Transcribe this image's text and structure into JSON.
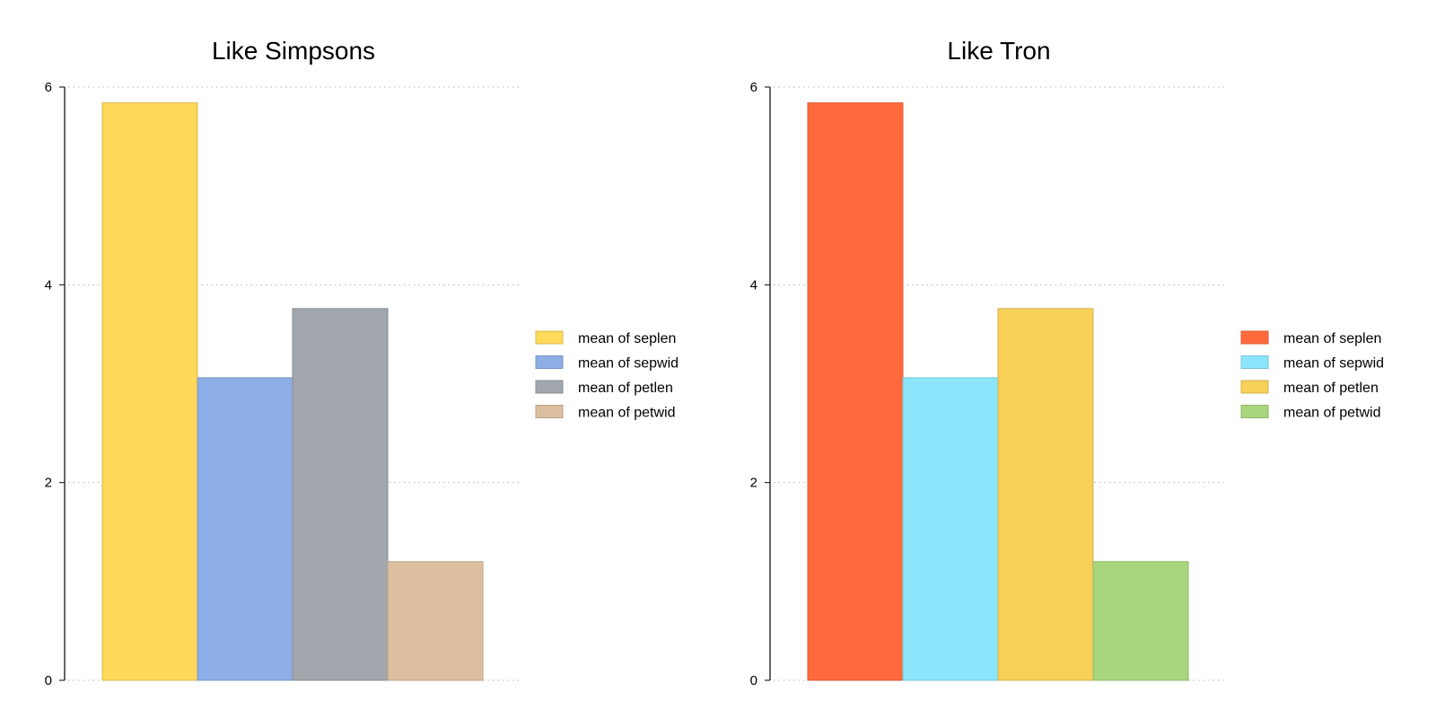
{
  "chart_data": [
    {
      "type": "bar",
      "title": "Like Simpsons",
      "xlabel": "",
      "ylabel": "",
      "ylim": [
        0,
        6
      ],
      "yticks": [
        "0",
        "2",
        "4",
        "6"
      ],
      "grid": "horizontal-dotted",
      "legend_position": "right",
      "series": [
        {
          "name": "mean of seplen",
          "value": 5.84,
          "color": "#FFD95A"
        },
        {
          "name": "mean of sepwid",
          "value": 3.06,
          "color": "#8DAEE6"
        },
        {
          "name": "mean of petlen",
          "value": 3.76,
          "color": "#A2A7AD"
        },
        {
          "name": "mean of petwid",
          "value": 1.2,
          "color": "#DBBF9E"
        }
      ]
    },
    {
      "type": "bar",
      "title": "Like Tron",
      "xlabel": "",
      "ylabel": "",
      "ylim": [
        0,
        6
      ],
      "yticks": [
        "0",
        "2",
        "4",
        "6"
      ],
      "grid": "horizontal-dotted",
      "legend_position": "right",
      "series": [
        {
          "name": "mean of seplen",
          "value": 5.84,
          "color": "#FF6A3D"
        },
        {
          "name": "mean of sepwid",
          "value": 3.06,
          "color": "#8BE6FC"
        },
        {
          "name": "mean of petlen",
          "value": 3.76,
          "color": "#F8D058"
        },
        {
          "name": "mean of petwid",
          "value": 1.2,
          "color": "#A9D67C"
        }
      ]
    }
  ]
}
